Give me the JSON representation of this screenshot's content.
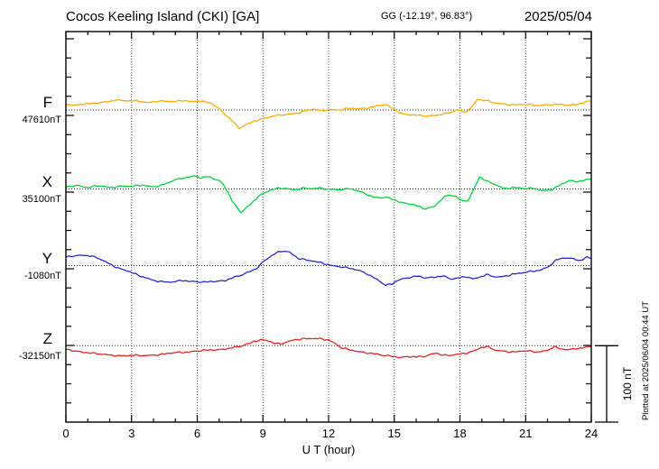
{
  "header": {
    "title": "Cocos Keeling Island (CKI)  [GA]",
    "gg_coordinates": "GG (-12.19°,  96.83°)",
    "date": "2025/05/04"
  },
  "x_axis": {
    "label": "U T (hour)",
    "tick_labels": [
      "0",
      "3",
      "6",
      "9",
      "12",
      "15",
      "18",
      "21",
      "24"
    ],
    "major_step_hours": 3,
    "minor_step_hours": 1,
    "range_hours": [
      0,
      24
    ]
  },
  "scale_bar": {
    "label": "100 nT",
    "span_nT": 100
  },
  "footnote": "Plotted at 2025/06/04 00:44 UT",
  "chart_data": {
    "type": "line",
    "xlabel": "U T (hour)",
    "x_range_hours": [
      0,
      24
    ],
    "grid": "dotted vertical lines every 3 h; dotted horizontal baseline per component",
    "scale_note": "vertical bar equals 100 nT",
    "legend_position": "left margin, one colored label per trace",
    "series": [
      {
        "name": "F",
        "baseline_label": "47610nT",
        "baseline_nT": 47610,
        "color": "#FFAA00",
        "points_hour_offset_nT": [
          [
            0,
            6
          ],
          [
            0.3,
            7
          ],
          [
            0.6,
            7
          ],
          [
            1,
            9
          ],
          [
            1.3,
            8
          ],
          [
            1.6,
            10
          ],
          [
            2,
            11
          ],
          [
            2.3,
            14
          ],
          [
            2.6,
            12
          ],
          [
            3,
            12
          ],
          [
            3.4,
            11
          ],
          [
            3.8,
            10
          ],
          [
            4.2,
            12
          ],
          [
            4.6,
            11
          ],
          [
            5,
            11
          ],
          [
            5.4,
            13
          ],
          [
            5.8,
            11
          ],
          [
            6.1,
            12
          ],
          [
            6.4,
            10
          ],
          [
            6.7,
            8
          ],
          [
            7,
            2
          ],
          [
            7.3,
            -6
          ],
          [
            7.6,
            -14
          ],
          [
            7.9,
            -24
          ],
          [
            8.2,
            -20
          ],
          [
            8.6,
            -14
          ],
          [
            9,
            -11
          ],
          [
            9.5,
            -8
          ],
          [
            10,
            -6
          ],
          [
            10.5,
            -4
          ],
          [
            11,
            -1
          ],
          [
            11.3,
            1
          ],
          [
            11.6,
            -1
          ],
          [
            12,
            1
          ],
          [
            12.5,
            0
          ],
          [
            13,
            2
          ],
          [
            13.5,
            2
          ],
          [
            14,
            4
          ],
          [
            14.6,
            7
          ],
          [
            15,
            1
          ],
          [
            15.4,
            -5
          ],
          [
            16,
            -7
          ],
          [
            16.5,
            -8
          ],
          [
            17,
            -6
          ],
          [
            17.5,
            -4
          ],
          [
            17.9,
            0
          ],
          [
            18.2,
            -3
          ],
          [
            18.5,
            3
          ],
          [
            18.8,
            14
          ],
          [
            19.2,
            12
          ],
          [
            19.6,
            9
          ],
          [
            20,
            8
          ],
          [
            20.5,
            7
          ],
          [
            21,
            7
          ],
          [
            21.5,
            6
          ],
          [
            22,
            7
          ],
          [
            22.5,
            7
          ],
          [
            23,
            6
          ],
          [
            23.5,
            9
          ],
          [
            24,
            12
          ]
        ]
      },
      {
        "name": "X",
        "baseline_label": "35100nT",
        "baseline_nT": 35100,
        "color": "#00D23C",
        "points_hour_offset_nT": [
          [
            0,
            2
          ],
          [
            0.5,
            5
          ],
          [
            1,
            2
          ],
          [
            1.5,
            4
          ],
          [
            2,
            2
          ],
          [
            2.5,
            4
          ],
          [
            3,
            3
          ],
          [
            3.5,
            5
          ],
          [
            4,
            3
          ],
          [
            4.4,
            5
          ],
          [
            4.7,
            8
          ],
          [
            5,
            12
          ],
          [
            5.3,
            14
          ],
          [
            5.6,
            16
          ],
          [
            5.9,
            17
          ],
          [
            6.2,
            14
          ],
          [
            6.5,
            16
          ],
          [
            6.8,
            13
          ],
          [
            7,
            11
          ],
          [
            7.2,
            6
          ],
          [
            7.4,
            -4
          ],
          [
            7.6,
            -16
          ],
          [
            7.8,
            -24
          ],
          [
            8,
            -31
          ],
          [
            8.2,
            -26
          ],
          [
            8.5,
            -18
          ],
          [
            8.8,
            -9
          ],
          [
            9,
            -6
          ],
          [
            9.3,
            -2
          ],
          [
            9.6,
            0
          ],
          [
            10,
            1
          ],
          [
            10.4,
            -1
          ],
          [
            10.8,
            1
          ],
          [
            11.2,
            0
          ],
          [
            11.6,
            1
          ],
          [
            12,
            0
          ],
          [
            12.5,
            -1
          ],
          [
            13,
            0
          ],
          [
            13.4,
            -3
          ],
          [
            13.7,
            -6
          ],
          [
            14,
            -10
          ],
          [
            14.3,
            -12
          ],
          [
            14.6,
            -11
          ],
          [
            15,
            -14
          ],
          [
            15.4,
            -18
          ],
          [
            15.8,
            -20
          ],
          [
            16.1,
            -23
          ],
          [
            16.4,
            -26
          ],
          [
            16.8,
            -23
          ],
          [
            17.2,
            -12
          ],
          [
            17.5,
            -8
          ],
          [
            17.8,
            -10
          ],
          [
            18.1,
            -16
          ],
          [
            18.4,
            -14
          ],
          [
            18.6,
            -2
          ],
          [
            18.9,
            16
          ],
          [
            19.2,
            10
          ],
          [
            19.5,
            7
          ],
          [
            20,
            1
          ],
          [
            20.5,
            2
          ],
          [
            21,
            0
          ],
          [
            21.4,
            1
          ],
          [
            21.8,
            -2
          ],
          [
            22.2,
            -1
          ],
          [
            22.6,
            5
          ],
          [
            23,
            11
          ],
          [
            23.3,
            10
          ],
          [
            23.6,
            11
          ],
          [
            24,
            13
          ]
        ]
      },
      {
        "name": "Y",
        "baseline_label": "-1080nT",
        "baseline_nT": -1080,
        "color": "#2828CC",
        "points_hour_offset_nT": [
          [
            0,
            11
          ],
          [
            0.4,
            13
          ],
          [
            0.8,
            14
          ],
          [
            1.2,
            12
          ],
          [
            1.5,
            9
          ],
          [
            1.8,
            5
          ],
          [
            2.1,
            1
          ],
          [
            2.4,
            -3
          ],
          [
            2.7,
            -6
          ],
          [
            3,
            -9
          ],
          [
            3.3,
            -13
          ],
          [
            3.7,
            -16
          ],
          [
            4,
            -19
          ],
          [
            4.4,
            -21
          ],
          [
            4.7,
            -22
          ],
          [
            5,
            -21
          ],
          [
            5.3,
            -19
          ],
          [
            5.6,
            -20
          ],
          [
            6,
            -21
          ],
          [
            6.3,
            -22
          ],
          [
            6.6,
            -21
          ],
          [
            7,
            -20
          ],
          [
            7.3,
            -19
          ],
          [
            7.6,
            -16
          ],
          [
            8,
            -13
          ],
          [
            8.3,
            -9
          ],
          [
            8.6,
            -5
          ],
          [
            8.8,
            -1
          ],
          [
            9,
            5
          ],
          [
            9.3,
            11
          ],
          [
            9.6,
            16
          ],
          [
            9.9,
            19
          ],
          [
            10.2,
            18
          ],
          [
            10.6,
            10
          ],
          [
            11,
            7
          ],
          [
            11.4,
            5
          ],
          [
            11.8,
            3
          ],
          [
            12.2,
            0
          ],
          [
            12.6,
            -2
          ],
          [
            13,
            -4
          ],
          [
            13.4,
            -6
          ],
          [
            13.8,
            -11
          ],
          [
            14.2,
            -18
          ],
          [
            14.6,
            -26
          ],
          [
            14.9,
            -24
          ],
          [
            15.2,
            -18
          ],
          [
            15.6,
            -16
          ],
          [
            16,
            -14
          ],
          [
            16.4,
            -16
          ],
          [
            16.8,
            -15
          ],
          [
            17.2,
            -13
          ],
          [
            17.6,
            -18
          ],
          [
            18,
            -16
          ],
          [
            18.3,
            -14
          ],
          [
            18.6,
            -17
          ],
          [
            18.9,
            -15
          ],
          [
            19.2,
            -12
          ],
          [
            19.6,
            -15
          ],
          [
            20,
            -14
          ],
          [
            20.4,
            -11
          ],
          [
            20.8,
            -10
          ],
          [
            21.2,
            -8
          ],
          [
            21.6,
            -6
          ],
          [
            22,
            -2
          ],
          [
            22.4,
            7
          ],
          [
            22.8,
            10
          ],
          [
            23.2,
            9
          ],
          [
            23.5,
            7
          ],
          [
            23.8,
            11
          ],
          [
            24,
            9
          ]
        ]
      },
      {
        "name": "Z",
        "baseline_label": "-32150nT",
        "baseline_nT": -32150,
        "color": "#E62222",
        "points_hour_offset_nT": [
          [
            0,
            -5
          ],
          [
            0.5,
            -7
          ],
          [
            1,
            -9
          ],
          [
            1.5,
            -11
          ],
          [
            2,
            -12
          ],
          [
            2.5,
            -13
          ],
          [
            3,
            -13
          ],
          [
            3.5,
            -13
          ],
          [
            4,
            -12
          ],
          [
            4.5,
            -11
          ],
          [
            5,
            -9
          ],
          [
            5.5,
            -8
          ],
          [
            6,
            -7
          ],
          [
            6.5,
            -6
          ],
          [
            7,
            -5
          ],
          [
            7.5,
            -3
          ],
          [
            8,
            -1
          ],
          [
            8.3,
            2
          ],
          [
            8.6,
            6
          ],
          [
            8.9,
            8
          ],
          [
            9.2,
            7
          ],
          [
            9.5,
            3
          ],
          [
            9.8,
            2
          ],
          [
            10.1,
            5
          ],
          [
            10.4,
            8
          ],
          [
            10.8,
            9
          ],
          [
            11.2,
            9
          ],
          [
            11.6,
            9
          ],
          [
            12,
            8
          ],
          [
            12.3,
            3
          ],
          [
            12.6,
            -3
          ],
          [
            13,
            -6
          ],
          [
            13.5,
            -8
          ],
          [
            14,
            -10
          ],
          [
            14.5,
            -13
          ],
          [
            15,
            -14
          ],
          [
            15.3,
            -15
          ],
          [
            15.6,
            -14
          ],
          [
            16,
            -15
          ],
          [
            16.4,
            -14
          ],
          [
            16.9,
            -9
          ],
          [
            17.2,
            -12
          ],
          [
            17.5,
            -13
          ],
          [
            17.8,
            -12
          ],
          [
            18.2,
            -10
          ],
          [
            18.6,
            -7
          ],
          [
            19,
            -2
          ],
          [
            19.3,
            -2
          ],
          [
            19.6,
            -6
          ],
          [
            20,
            -7
          ],
          [
            20.5,
            -8
          ],
          [
            21,
            -7
          ],
          [
            21.5,
            -8
          ],
          [
            22,
            -6
          ],
          [
            22.3,
            -1
          ],
          [
            22.6,
            -5
          ],
          [
            23,
            -5
          ],
          [
            23.4,
            -3
          ],
          [
            23.7,
            -2
          ],
          [
            24,
            -1
          ]
        ]
      }
    ]
  }
}
